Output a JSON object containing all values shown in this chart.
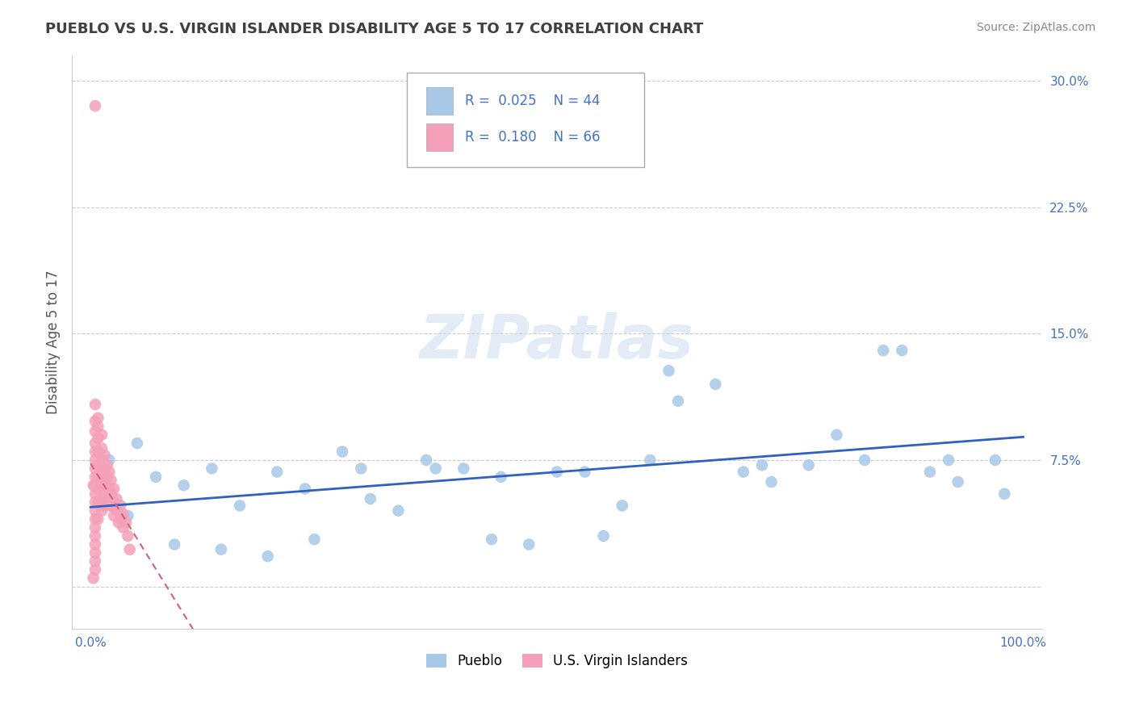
{
  "title": "PUEBLO VS U.S. VIRGIN ISLANDER DISABILITY AGE 5 TO 17 CORRELATION CHART",
  "source": "Source: ZipAtlas.com",
  "ylabel": "Disability Age 5 to 17",
  "xlim": [
    -0.02,
    1.02
  ],
  "ylim": [
    -0.025,
    0.315
  ],
  "yticks": [
    0.0,
    0.075,
    0.15,
    0.225,
    0.3
  ],
  "yticklabels": [
    "",
    "7.5%",
    "15.0%",
    "22.5%",
    "30.0%"
  ],
  "xtick_positions": [
    0.0,
    1.0
  ],
  "xticklabels": [
    "0.0%",
    "100.0%"
  ],
  "r_pueblo": 0.025,
  "n_pueblo": 44,
  "r_virgin": 0.18,
  "n_virgin": 66,
  "color_pueblo": "#a8c8e8",
  "color_virgin": "#f4a0b8",
  "trendline_pueblo_color": "#3060c0",
  "trendline_virgin_color": "#d06080",
  "background_color": "#ffffff",
  "grid_color": "#cccccc",
  "pueblo_x": [
    0.02,
    0.05,
    0.07,
    0.1,
    0.13,
    0.16,
    0.2,
    0.23,
    0.27,
    0.3,
    0.33,
    0.36,
    0.4,
    0.43,
    0.47,
    0.5,
    0.53,
    0.57,
    0.6,
    0.63,
    0.67,
    0.7,
    0.73,
    0.77,
    0.8,
    0.83,
    0.87,
    0.9,
    0.93,
    0.97,
    0.04,
    0.09,
    0.14,
    0.19,
    0.24,
    0.29,
    0.37,
    0.44,
    0.55,
    0.62,
    0.72,
    0.85,
    0.92,
    0.98
  ],
  "pueblo_y": [
    0.075,
    0.085,
    0.065,
    0.06,
    0.07,
    0.048,
    0.068,
    0.058,
    0.08,
    0.052,
    0.045,
    0.075,
    0.07,
    0.028,
    0.025,
    0.068,
    0.068,
    0.048,
    0.075,
    0.11,
    0.12,
    0.068,
    0.062,
    0.072,
    0.09,
    0.075,
    0.14,
    0.068,
    0.062,
    0.075,
    0.042,
    0.025,
    0.022,
    0.018,
    0.028,
    0.07,
    0.07,
    0.065,
    0.03,
    0.128,
    0.072,
    0.14,
    0.075,
    0.055
  ],
  "virgin_x": [
    0.005,
    0.005,
    0.005,
    0.005,
    0.005,
    0.005,
    0.005,
    0.005,
    0.005,
    0.005,
    0.005,
    0.005,
    0.005,
    0.005,
    0.005,
    0.005,
    0.005,
    0.005,
    0.005,
    0.005,
    0.008,
    0.008,
    0.008,
    0.008,
    0.008,
    0.008,
    0.008,
    0.008,
    0.008,
    0.012,
    0.012,
    0.012,
    0.012,
    0.012,
    0.012,
    0.012,
    0.015,
    0.015,
    0.015,
    0.015,
    0.015,
    0.018,
    0.018,
    0.018,
    0.018,
    0.022,
    0.022,
    0.022,
    0.025,
    0.025,
    0.025,
    0.028,
    0.028,
    0.032,
    0.032,
    0.035,
    0.035,
    0.038,
    0.04,
    0.042,
    0.003,
    0.003,
    0.02,
    0.02,
    0.02,
    0.03
  ],
  "virgin_y": [
    0.285,
    0.108,
    0.098,
    0.092,
    0.085,
    0.08,
    0.075,
    0.07,
    0.065,
    0.06,
    0.055,
    0.05,
    0.045,
    0.04,
    0.035,
    0.03,
    0.025,
    0.02,
    0.015,
    0.01,
    0.1,
    0.095,
    0.088,
    0.08,
    0.072,
    0.065,
    0.058,
    0.05,
    0.04,
    0.09,
    0.082,
    0.075,
    0.068,
    0.06,
    0.052,
    0.045,
    0.078,
    0.07,
    0.062,
    0.055,
    0.048,
    0.072,
    0.065,
    0.057,
    0.05,
    0.063,
    0.055,
    0.048,
    0.058,
    0.05,
    0.042,
    0.052,
    0.045,
    0.048,
    0.04,
    0.043,
    0.035,
    0.038,
    0.03,
    0.022,
    0.06,
    0.005,
    0.068,
    0.058,
    0.048,
    0.038
  ]
}
